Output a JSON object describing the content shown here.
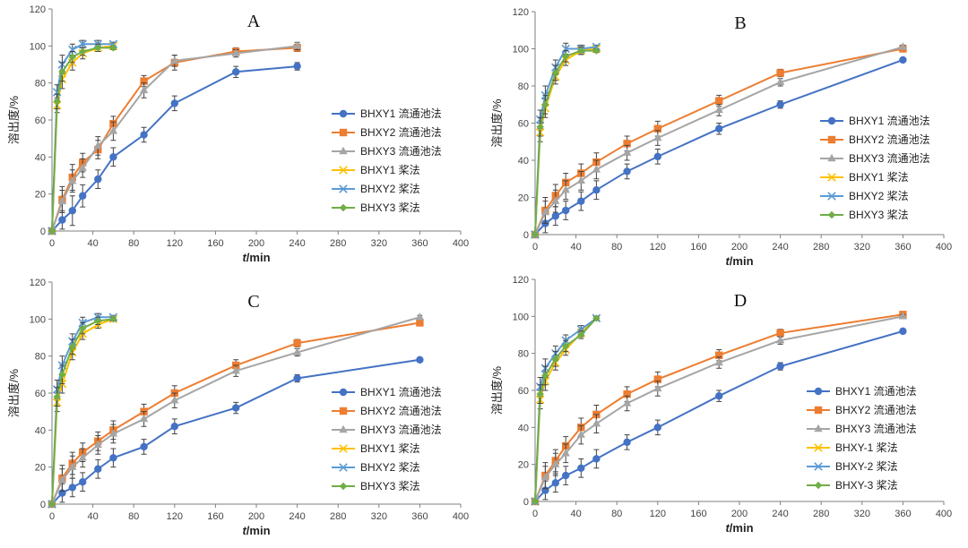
{
  "figure": {
    "ylabel": "溶出度/%",
    "xlabel_italic": "t",
    "xlabel_unit": "/min"
  },
  "colors": {
    "series1": "#4472C4",
    "series2": "#ED7D31",
    "series3": "#A5A5A5",
    "series4": "#FFC000",
    "series5": "#5B9BD5",
    "series6": "#70AD47",
    "errorbar": "#444444",
    "axis": "#7f7f7f"
  },
  "chart_data": [
    {
      "panel": "A",
      "type": "line",
      "title": "A",
      "xlim": [
        0,
        400
      ],
      "ylim": [
        0,
        120
      ],
      "xticks": [
        0,
        40,
        80,
        120,
        160,
        200,
        240,
        280,
        320,
        360,
        400
      ],
      "yticks": [
        0,
        20,
        40,
        60,
        80,
        100,
        120
      ],
      "xlabel": "t/min",
      "ylabel": "溶出度/%",
      "legend_position": "right",
      "series": [
        {
          "name": "BHXY1 流通池法",
          "marker": "circle",
          "x": [
            0,
            10,
            20,
            30,
            45,
            60,
            90,
            120,
            180,
            240
          ],
          "y": [
            0,
            6,
            11,
            19,
            28,
            40,
            52,
            69,
            86,
            89
          ],
          "err": [
            0,
            5,
            8,
            6,
            5,
            5,
            4,
            4,
            3,
            2
          ]
        },
        {
          "name": "BHXY2 流通池法",
          "marker": "square",
          "x": [
            0,
            10,
            20,
            30,
            45,
            60,
            90,
            120,
            180,
            240
          ],
          "y": [
            0,
            17,
            29,
            37,
            44,
            58,
            81,
            91,
            97,
            99
          ],
          "err": [
            0,
            7,
            7,
            5,
            5,
            4,
            3,
            4,
            2,
            2
          ]
        },
        {
          "name": "BHXY3 流通池法",
          "marker": "triangle",
          "x": [
            0,
            10,
            20,
            30,
            45,
            60,
            90,
            120,
            180,
            240
          ],
          "y": [
            0,
            16,
            27,
            34,
            46,
            54,
            76,
            92,
            96,
            100
          ],
          "err": [
            0,
            6,
            6,
            5,
            5,
            5,
            4,
            3,
            2,
            2
          ]
        },
        {
          "name": "BHXY1 桨法",
          "marker": "x",
          "x": [
            0,
            5,
            10,
            20,
            30,
            45,
            60
          ],
          "y": [
            0,
            68,
            82,
            91,
            96,
            99,
            100
          ],
          "err": [
            0,
            4,
            5,
            4,
            3,
            2,
            2
          ]
        },
        {
          "name": "BHXY2 桨法",
          "marker": "x",
          "x": [
            0,
            5,
            10,
            20,
            30,
            45,
            60
          ],
          "y": [
            0,
            75,
            90,
            98,
            101,
            101,
            101
          ],
          "err": [
            0,
            4,
            5,
            3,
            2,
            2,
            1
          ]
        },
        {
          "name": "BHXY3 桨法",
          "marker": "diamond",
          "x": [
            0,
            5,
            10,
            20,
            30,
            45,
            60
          ],
          "y": [
            0,
            70,
            86,
            94,
            97,
            99,
            99
          ],
          "err": [
            0,
            4,
            5,
            3,
            2,
            2,
            1
          ]
        }
      ]
    },
    {
      "panel": "B",
      "type": "line",
      "title": "B",
      "xlim": [
        0,
        400
      ],
      "ylim": [
        0,
        120
      ],
      "xticks": [
        0,
        40,
        80,
        120,
        160,
        200,
        240,
        280,
        320,
        360,
        400
      ],
      "yticks": [
        0,
        20,
        40,
        60,
        80,
        100,
        120
      ],
      "xlabel": "t/min",
      "ylabel": "溶出度/%",
      "legend_position": "right",
      "series": [
        {
          "name": "BHXY1 流通池法",
          "marker": "circle",
          "x": [
            0,
            10,
            20,
            30,
            45,
            60,
            90,
            120,
            180,
            240,
            360
          ],
          "y": [
            0,
            6,
            10,
            13,
            18,
            24,
            34,
            42,
            57,
            70,
            94
          ],
          "err": [
            0,
            5,
            5,
            5,
            5,
            5,
            4,
            4,
            3,
            2,
            1
          ]
        },
        {
          "name": "BHXY2 流通池法",
          "marker": "square",
          "x": [
            0,
            10,
            20,
            30,
            45,
            60,
            90,
            120,
            180,
            240,
            360
          ],
          "y": [
            0,
            13,
            21,
            28,
            33,
            39,
            49,
            57,
            72,
            87,
            100
          ],
          "err": [
            0,
            7,
            6,
            5,
            5,
            5,
            4,
            4,
            3,
            2,
            1
          ]
        },
        {
          "name": "BHXY3 流通池法",
          "marker": "triangle",
          "x": [
            0,
            10,
            20,
            30,
            45,
            60,
            90,
            120,
            180,
            240,
            360
          ],
          "y": [
            0,
            12,
            18,
            24,
            29,
            35,
            44,
            52,
            67,
            82,
            101
          ],
          "err": [
            0,
            6,
            6,
            5,
            5,
            5,
            4,
            4,
            3,
            2,
            1
          ]
        },
        {
          "name": "BHXY1 桨法",
          "marker": "x",
          "x": [
            0,
            5,
            10,
            20,
            30,
            45,
            60
          ],
          "y": [
            0,
            55,
            68,
            85,
            94,
            99,
            100
          ],
          "err": [
            0,
            5,
            5,
            4,
            3,
            2,
            1
          ]
        },
        {
          "name": "BHXY2 桨法",
          "marker": "x",
          "x": [
            0,
            5,
            10,
            20,
            30,
            45,
            60
          ],
          "y": [
            0,
            62,
            75,
            90,
            100,
            100,
            101
          ],
          "err": [
            0,
            5,
            5,
            4,
            3,
            2,
            1
          ]
        },
        {
          "name": "BHXY3 桨法",
          "marker": "diamond",
          "x": [
            0,
            5,
            10,
            20,
            30,
            45,
            60
          ],
          "y": [
            0,
            58,
            70,
            87,
            96,
            99,
            99
          ],
          "err": [
            0,
            5,
            5,
            4,
            3,
            2,
            1
          ]
        }
      ]
    },
    {
      "panel": "C",
      "type": "line",
      "title": "C",
      "xlim": [
        0,
        400
      ],
      "ylim": [
        0,
        120
      ],
      "xticks": [
        0,
        40,
        80,
        120,
        160,
        200,
        240,
        280,
        320,
        360,
        400
      ],
      "yticks": [
        0,
        20,
        40,
        60,
        80,
        100,
        120
      ],
      "xlabel": "t/min",
      "ylabel": "溶出度/%",
      "legend_position": "right",
      "series": [
        {
          "name": "BHXY1 流通池法",
          "marker": "circle",
          "x": [
            0,
            10,
            20,
            30,
            45,
            60,
            90,
            120,
            180,
            240,
            360
          ],
          "y": [
            0,
            6,
            9,
            12,
            19,
            25,
            31,
            42,
            52,
            68,
            78
          ],
          "err": [
            0,
            5,
            5,
            5,
            5,
            5,
            4,
            4,
            3,
            2,
            1
          ]
        },
        {
          "name": "BHXY2 流通池法",
          "marker": "square",
          "x": [
            0,
            10,
            20,
            30,
            45,
            60,
            90,
            120,
            180,
            240,
            360
          ],
          "y": [
            0,
            14,
            22,
            28,
            34,
            40,
            50,
            60,
            75,
            87,
            98
          ],
          "err": [
            0,
            7,
            6,
            5,
            5,
            5,
            4,
            4,
            3,
            2,
            1
          ]
        },
        {
          "name": "BHXY3 流通池法",
          "marker": "triangle",
          "x": [
            0,
            10,
            20,
            30,
            45,
            60,
            90,
            120,
            180,
            240,
            360
          ],
          "y": [
            0,
            13,
            20,
            25,
            32,
            38,
            46,
            56,
            72,
            82,
            101
          ],
          "err": [
            0,
            6,
            6,
            5,
            5,
            5,
            4,
            4,
            3,
            2,
            1
          ]
        },
        {
          "name": "BHXY1 桨法",
          "marker": "x",
          "x": [
            0,
            5,
            10,
            20,
            30,
            45,
            60
          ],
          "y": [
            0,
            55,
            65,
            82,
            92,
            97,
            100
          ],
          "err": [
            0,
            5,
            5,
            4,
            3,
            2,
            1
          ]
        },
        {
          "name": "BHXY2 桨法",
          "marker": "x",
          "x": [
            0,
            5,
            10,
            20,
            30,
            45,
            60
          ],
          "y": [
            0,
            62,
            75,
            88,
            98,
            101,
            101
          ],
          "err": [
            0,
            5,
            5,
            4,
            3,
            2,
            1
          ]
        },
        {
          "name": "BHXY3 桨法",
          "marker": "diamond",
          "x": [
            0,
            5,
            10,
            20,
            30,
            45,
            60
          ],
          "y": [
            0,
            58,
            70,
            85,
            95,
            99,
            100
          ],
          "err": [
            0,
            5,
            5,
            4,
            3,
            2,
            1
          ]
        }
      ]
    },
    {
      "panel": "D",
      "type": "line",
      "title": "D",
      "xlim": [
        0,
        400
      ],
      "ylim": [
        0,
        120
      ],
      "xticks": [
        0,
        40,
        80,
        120,
        160,
        200,
        240,
        280,
        320,
        360,
        400
      ],
      "yticks": [
        0,
        20,
        40,
        60,
        80,
        100,
        120
      ],
      "xlabel": "t/min",
      "ylabel": "溶出度/%",
      "legend_position": "right",
      "series": [
        {
          "name": "BHXY1 流通池法",
          "marker": "circle",
          "x": [
            0,
            10,
            20,
            30,
            45,
            60,
            90,
            120,
            180,
            240,
            360
          ],
          "y": [
            0,
            6,
            10,
            14,
            18,
            23,
            32,
            40,
            57,
            73,
            92
          ],
          "err": [
            0,
            5,
            5,
            5,
            5,
            5,
            4,
            4,
            3,
            2,
            1
          ]
        },
        {
          "name": "BHXY2 流通池法",
          "marker": "square",
          "x": [
            0,
            10,
            20,
            30,
            45,
            60,
            90,
            120,
            180,
            240,
            360
          ],
          "y": [
            0,
            14,
            22,
            30,
            40,
            47,
            58,
            66,
            79,
            91,
            101
          ],
          "err": [
            0,
            7,
            6,
            5,
            5,
            5,
            4,
            4,
            3,
            2,
            1
          ]
        },
        {
          "name": "BHXY3 流通池法",
          "marker": "triangle",
          "x": [
            0,
            10,
            20,
            30,
            45,
            60,
            90,
            120,
            180,
            240,
            360
          ],
          "y": [
            0,
            13,
            20,
            26,
            36,
            42,
            53,
            61,
            75,
            87,
            100
          ],
          "err": [
            0,
            6,
            6,
            5,
            5,
            5,
            4,
            4,
            3,
            2,
            1
          ]
        },
        {
          "name": "BHXY-1 桨法",
          "marker": "x",
          "x": [
            0,
            5,
            10,
            20,
            30,
            45,
            60
          ],
          "y": [
            0,
            55,
            65,
            75,
            82,
            91,
            99
          ],
          "err": [
            0,
            5,
            5,
            4,
            3,
            2,
            1
          ]
        },
        {
          "name": "BHXY-2 桨法",
          "marker": "x",
          "x": [
            0,
            5,
            10,
            20,
            30,
            45,
            60
          ],
          "y": [
            0,
            62,
            72,
            80,
            87,
            93,
            99
          ],
          "err": [
            0,
            5,
            5,
            4,
            3,
            2,
            1
          ]
        },
        {
          "name": "BHXY-3 桨法",
          "marker": "diamond",
          "x": [
            0,
            5,
            10,
            20,
            30,
            45,
            60
          ],
          "y": [
            0,
            58,
            68,
            77,
            84,
            90,
            99
          ],
          "err": [
            0,
            5,
            5,
            4,
            3,
            2,
            1
          ]
        }
      ]
    }
  ]
}
